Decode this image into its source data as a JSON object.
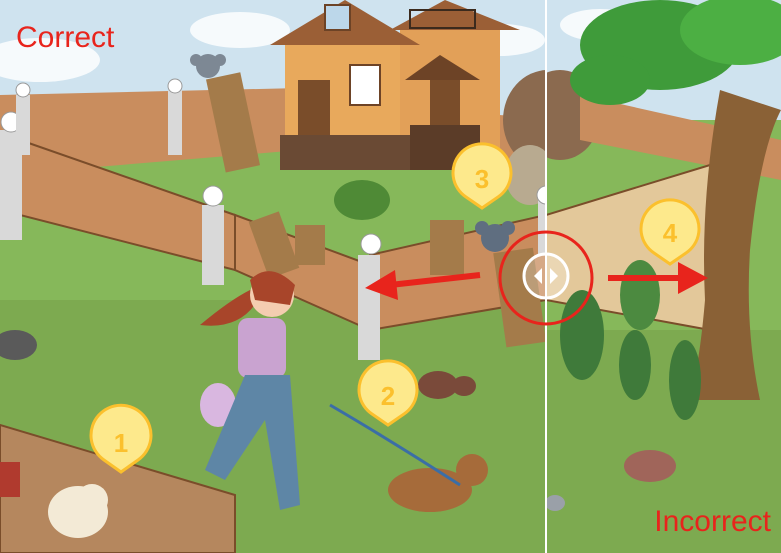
{
  "labels": {
    "left": "Correct",
    "right": "Incorrect"
  },
  "markers": [
    "1",
    "2",
    "3",
    "4"
  ],
  "colors": {
    "label": "#e8241c",
    "arrow": "#e8241c",
    "marker_fill": "#fde98c",
    "marker_stroke": "#fbc02d",
    "divider": "#ffffff"
  },
  "icons": {
    "compare_handle": "left-right-arrows-icon"
  }
}
